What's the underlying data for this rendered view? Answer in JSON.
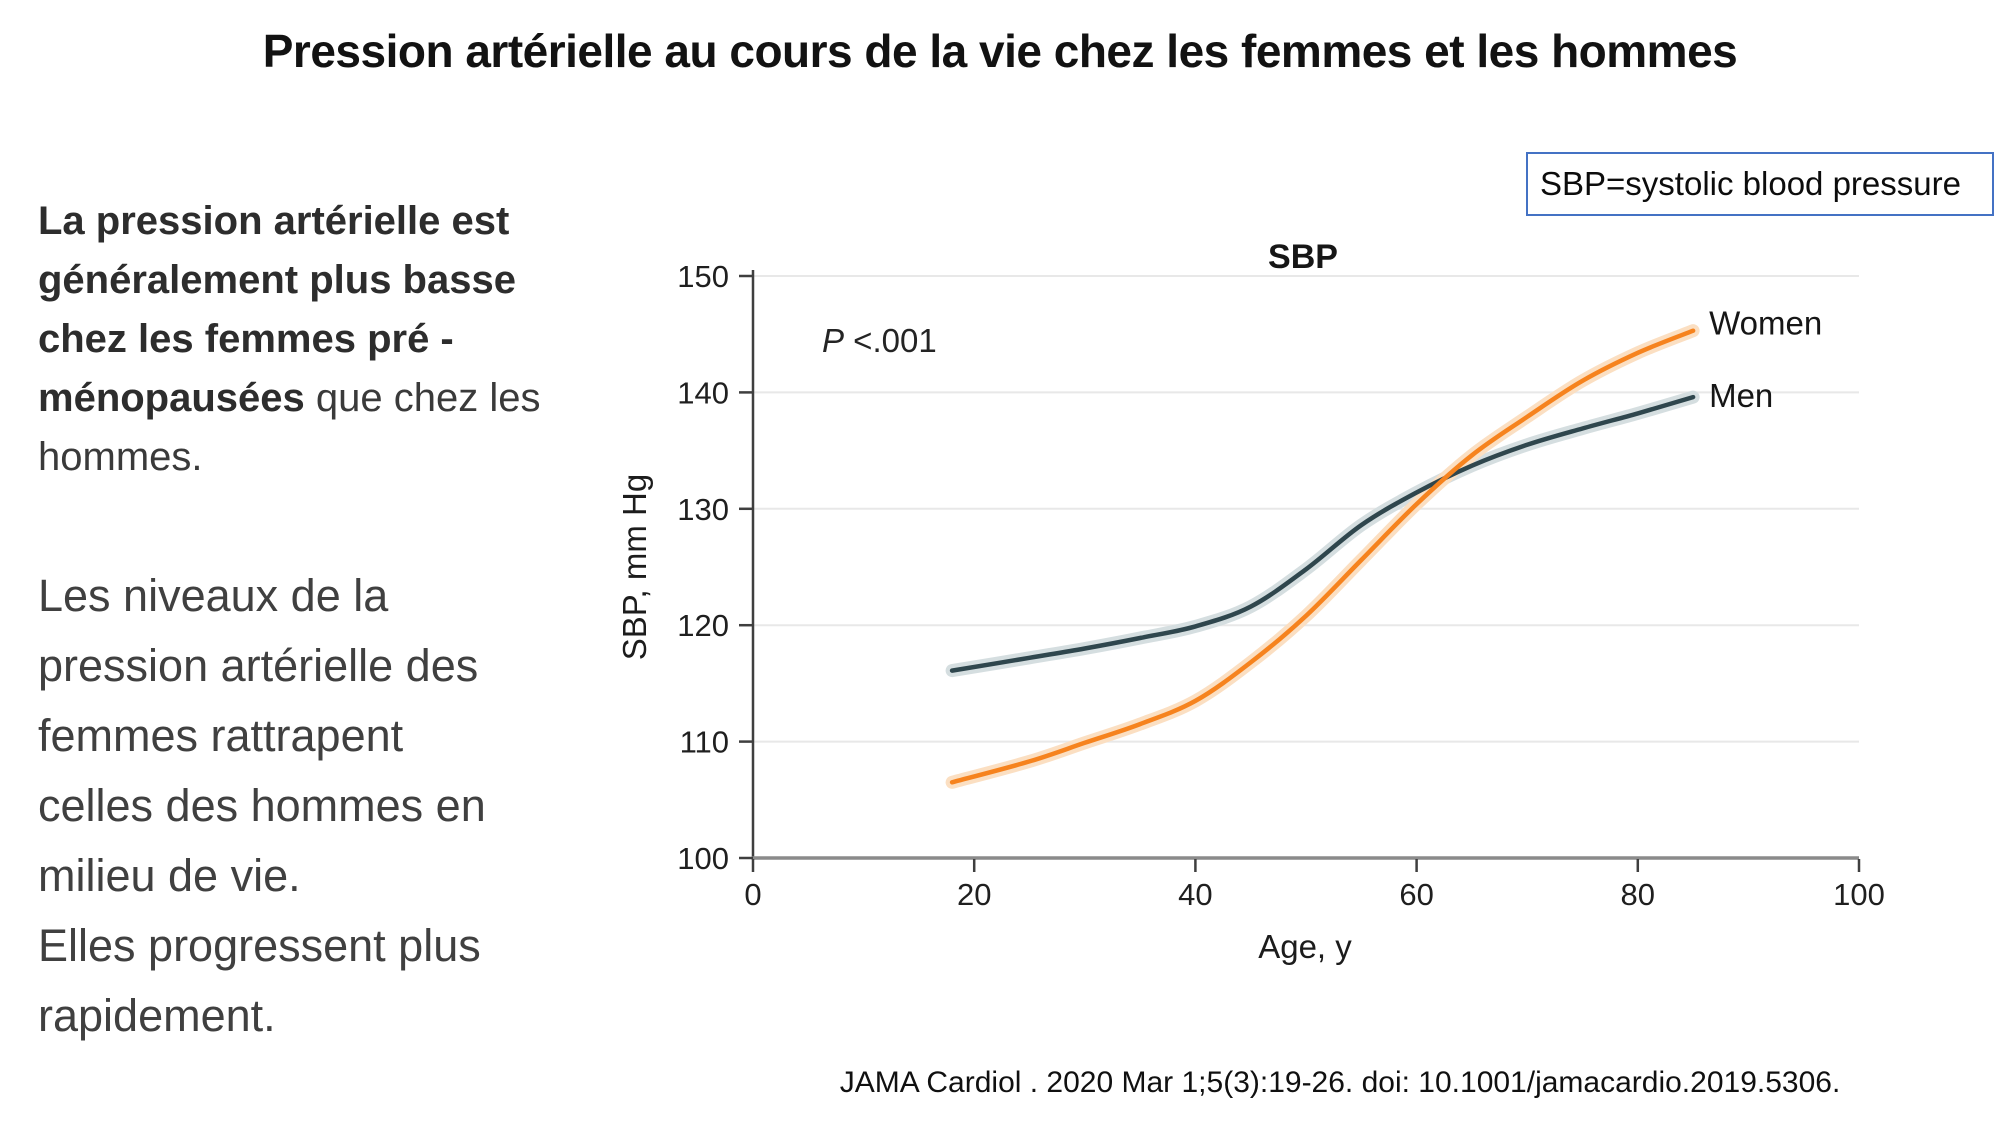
{
  "title": "Pression artérielle au cours de la vie chez les femmes et les hommes",
  "left_text": {
    "para1_bold": "La pression artérielle est\ngénéralement plus basse\nchez les femmes pré -\nménopausées",
    "para1_rest": " que chez les\nhommes.",
    "para2": "Les niveaux de la\npression artérielle des\nfemmes rattrapent\ncelles des hommes en\nmilieu de vie.\nElles progressent plus\nrapidement."
  },
  "abbrev_box": {
    "label": "SBP=systolic blood pressure",
    "border_color": "#4472C4"
  },
  "citation": "JAMA Cardiol . 2020 Mar 1;5(3):19-26. doi: 10.1001/jamacardio.2019.5306.",
  "chart_data": {
    "type": "line",
    "title": "SBP",
    "xlabel": "Age, y",
    "ylabel": "SBP, mm Hg",
    "p_annotation": {
      "symbol": "P",
      "value": " <.001"
    },
    "xlim": [
      0,
      100
    ],
    "ylim": [
      100,
      150
    ],
    "x_ticks": [
      0,
      20,
      40,
      60,
      80,
      100
    ],
    "y_ticks": [
      100,
      110,
      120,
      130,
      140,
      150
    ],
    "grid": true,
    "legend_position": "right of line ends",
    "x": [
      18,
      25,
      30,
      35,
      40,
      45,
      50,
      55,
      60,
      65,
      70,
      75,
      80,
      85
    ],
    "series": [
      {
        "name": "Women",
        "color": "#F6831E",
        "band_color": "#FBDFC2",
        "values": [
          106.5,
          108.3,
          109.9,
          111.5,
          113.5,
          116.8,
          120.8,
          125.6,
          130.4,
          134.6,
          137.9,
          141.0,
          143.4,
          145.3
        ]
      },
      {
        "name": "Men",
        "color": "#2F464D",
        "band_color": "#D5DEE0",
        "values": [
          116.1,
          117.2,
          118.0,
          118.9,
          119.9,
          121.6,
          124.8,
          128.6,
          131.4,
          133.7,
          135.5,
          136.9,
          138.2,
          139.6
        ]
      }
    ]
  }
}
